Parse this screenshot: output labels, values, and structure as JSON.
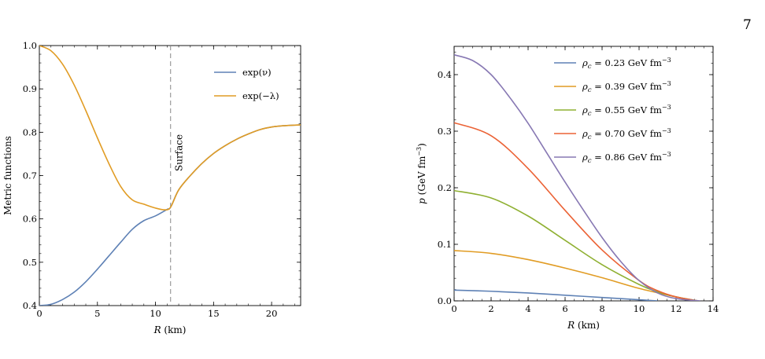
{
  "page": {
    "number": "7"
  },
  "chart_data": [
    {
      "type": "line",
      "title": "",
      "xlabel": "R (km)",
      "ylabel": "Metric functions",
      "xlim": [
        0,
        22.5
      ],
      "ylim": [
        0.4,
        1.0
      ],
      "xticks": [
        0,
        5,
        10,
        15,
        20
      ],
      "yticks": [
        0.4,
        0.5,
        0.6,
        0.7,
        0.8,
        0.9,
        1.0
      ],
      "grid": false,
      "legend_placement": "top-right",
      "annotations": [
        {
          "text": "Surface",
          "x": 11.3
        }
      ],
      "series": [
        {
          "name": "exp(ν)",
          "color": "#5e81b5",
          "x": [
            0,
            1,
            2,
            3,
            4,
            5,
            6,
            7,
            8,
            9,
            10,
            11,
            11.3,
            12,
            13,
            14,
            15,
            16,
            17,
            18,
            19,
            20,
            21,
            22.5
          ],
          "y": [
            0.4,
            0.403,
            0.414,
            0.431,
            0.455,
            0.484,
            0.515,
            0.546,
            0.576,
            0.596,
            0.607,
            0.622,
            0.627,
            0.667,
            0.7,
            0.728,
            0.751,
            0.769,
            0.784,
            0.796,
            0.806,
            0.812,
            0.815,
            0.817
          ]
        },
        {
          "name": "exp(−λ)",
          "color": "#e19c24",
          "x": [
            0,
            1,
            2,
            3,
            4,
            5,
            6,
            7,
            8,
            9,
            10,
            10.8,
            11.3,
            12,
            13,
            14,
            15,
            16,
            17,
            18,
            19,
            20,
            21,
            22.5
          ],
          "y": [
            1.0,
            0.988,
            0.957,
            0.909,
            0.85,
            0.787,
            0.727,
            0.675,
            0.644,
            0.634,
            0.625,
            0.621,
            0.627,
            0.667,
            0.7,
            0.728,
            0.751,
            0.769,
            0.784,
            0.796,
            0.806,
            0.812,
            0.815,
            0.817
          ]
        }
      ]
    },
    {
      "type": "line",
      "title": "",
      "xlabel": "R (km)",
      "ylabel": "p (GeV fm−3)",
      "xlim": [
        0,
        14
      ],
      "ylim": [
        0,
        0.45
      ],
      "xticks": [
        0,
        2,
        4,
        6,
        8,
        10,
        12,
        14
      ],
      "yticks": [
        0.0,
        0.1,
        0.2,
        0.3,
        0.4
      ],
      "grid": false,
      "legend_placement": "top-right",
      "series": [
        {
          "name": "ρc = 0.23 GeV fm−3",
          "color": "#5e81b5",
          "x": [
            0,
            2,
            4,
            6,
            8,
            10,
            11.0
          ],
          "y": [
            0.019,
            0.017,
            0.014,
            0.01,
            0.006,
            0.002,
            0.0
          ]
        },
        {
          "name": "ρc = 0.39 GeV fm−3",
          "color": "#e19c24",
          "x": [
            0,
            2,
            4,
            6,
            8,
            10,
            12,
            13.0
          ],
          "y": [
            0.089,
            0.084,
            0.073,
            0.058,
            0.041,
            0.022,
            0.007,
            0.0
          ]
        },
        {
          "name": "ρc = 0.55 GeV fm−3",
          "color": "#8fb032",
          "x": [
            0,
            2,
            4,
            6,
            8,
            10,
            11,
            12,
            13.2
          ],
          "y": [
            0.195,
            0.182,
            0.15,
            0.107,
            0.064,
            0.029,
            0.016,
            0.007,
            0.0
          ]
        },
        {
          "name": "ρc = 0.70 GeV fm−3",
          "color": "#eb6235",
          "x": [
            0,
            2,
            4,
            6,
            8,
            10,
            11,
            12,
            13.2
          ],
          "y": [
            0.315,
            0.292,
            0.234,
            0.16,
            0.09,
            0.036,
            0.018,
            0.007,
            0.0
          ]
        },
        {
          "name": "ρc = 0.86 GeV fm−3",
          "color": "#8778b3",
          "x": [
            0,
            1,
            2,
            3,
            4,
            5,
            6,
            7,
            8,
            9,
            10,
            11,
            12,
            13.3
          ],
          "y": [
            0.435,
            0.425,
            0.4,
            0.36,
            0.314,
            0.262,
            0.21,
            0.16,
            0.112,
            0.07,
            0.036,
            0.014,
            0.004,
            0.0
          ]
        }
      ]
    }
  ]
}
